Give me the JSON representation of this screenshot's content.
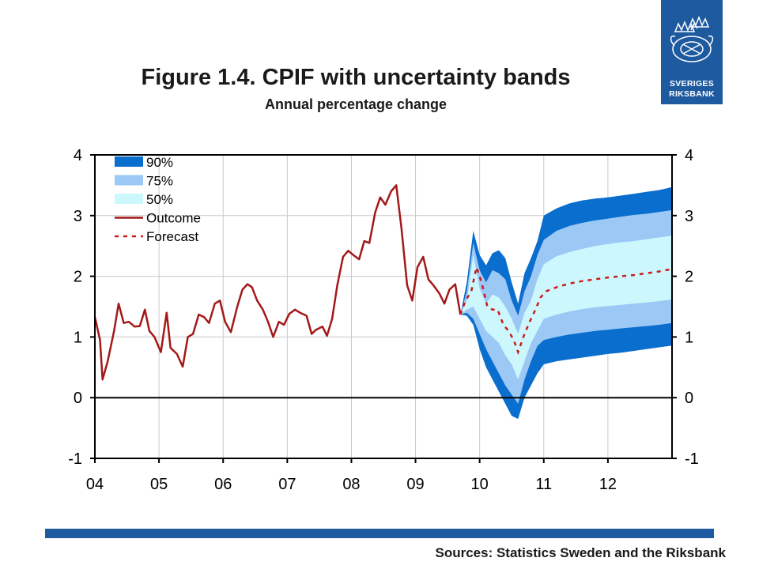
{
  "header": {
    "title": "Figure 1.4. CPIF with uncertainty bands",
    "subtitle": "Annual percentage change"
  },
  "logo": {
    "line1": "SVERIGES",
    "line2": "RIKSBANK"
  },
  "footer": {
    "source": "Sources: Statistics Sweden and the Riksbank"
  },
  "colors": {
    "band90": "#0a6ecf",
    "band75": "#9cc8f5",
    "band50": "#ccf7fd",
    "outcome": "#a31919",
    "forecast": "#cc1a1a",
    "brand": "#1d5aa0"
  },
  "chart_data": {
    "type": "area",
    "title": "Figure 1.4. CPIF with uncertainty bands",
    "subtitle": "Annual percentage change",
    "xlabel": "",
    "ylabel": "",
    "xlim": [
      2004.0,
      2013.0
    ],
    "ylim": [
      -1,
      4
    ],
    "x_ticks": [
      "04",
      "05",
      "06",
      "07",
      "08",
      "09",
      "10",
      "11",
      "12"
    ],
    "x_tick_values": [
      2004,
      2005,
      2006,
      2007,
      2008,
      2009,
      2010,
      2011,
      2012
    ],
    "y_ticks": [
      "-1",
      "0",
      "1",
      "2",
      "3",
      "4"
    ],
    "y_tick_values": [
      -1,
      0,
      1,
      2,
      3,
      4
    ],
    "grid": true,
    "legend_position": "top-left",
    "legend": [
      {
        "label": "90%",
        "kind": "band",
        "key": "band90"
      },
      {
        "label": "75%",
        "kind": "band",
        "key": "band75"
      },
      {
        "label": "50%",
        "kind": "band",
        "key": "band50"
      },
      {
        "label": "Outcome",
        "kind": "line",
        "key": "outcome"
      },
      {
        "label": "Forecast",
        "kind": "dashed",
        "key": "forecast"
      }
    ],
    "outcome": [
      [
        2004.0,
        1.33
      ],
      [
        2004.08,
        0.95
      ],
      [
        2004.12,
        0.3
      ],
      [
        2004.2,
        0.6
      ],
      [
        2004.3,
        1.1
      ],
      [
        2004.37,
        1.55
      ],
      [
        2004.45,
        1.23
      ],
      [
        2004.53,
        1.25
      ],
      [
        2004.62,
        1.17
      ],
      [
        2004.7,
        1.18
      ],
      [
        2004.78,
        1.45
      ],
      [
        2004.85,
        1.1
      ],
      [
        2004.93,
        1.0
      ],
      [
        2005.03,
        0.75
      ],
      [
        2005.12,
        1.4
      ],
      [
        2005.18,
        0.82
      ],
      [
        2005.28,
        0.72
      ],
      [
        2005.37,
        0.51
      ],
      [
        2005.45,
        1.0
      ],
      [
        2005.53,
        1.05
      ],
      [
        2005.62,
        1.37
      ],
      [
        2005.7,
        1.33
      ],
      [
        2005.78,
        1.23
      ],
      [
        2005.87,
        1.55
      ],
      [
        2005.95,
        1.6
      ],
      [
        2006.03,
        1.25
      ],
      [
        2006.12,
        1.08
      ],
      [
        2006.22,
        1.5
      ],
      [
        2006.3,
        1.78
      ],
      [
        2006.38,
        1.87
      ],
      [
        2006.45,
        1.82
      ],
      [
        2006.53,
        1.6
      ],
      [
        2006.62,
        1.45
      ],
      [
        2006.7,
        1.25
      ],
      [
        2006.78,
        1.0
      ],
      [
        2006.87,
        1.25
      ],
      [
        2006.95,
        1.2
      ],
      [
        2007.03,
        1.38
      ],
      [
        2007.12,
        1.45
      ],
      [
        2007.2,
        1.4
      ],
      [
        2007.3,
        1.35
      ],
      [
        2007.38,
        1.05
      ],
      [
        2007.45,
        1.12
      ],
      [
        2007.55,
        1.17
      ],
      [
        2007.62,
        1.02
      ],
      [
        2007.7,
        1.3
      ],
      [
        2007.78,
        1.85
      ],
      [
        2007.87,
        2.32
      ],
      [
        2007.95,
        2.42
      ],
      [
        2008.03,
        2.35
      ],
      [
        2008.12,
        2.28
      ],
      [
        2008.2,
        2.58
      ],
      [
        2008.28,
        2.55
      ],
      [
        2008.37,
        3.05
      ],
      [
        2008.45,
        3.3
      ],
      [
        2008.53,
        3.18
      ],
      [
        2008.62,
        3.4
      ],
      [
        2008.7,
        3.5
      ],
      [
        2008.78,
        2.8
      ],
      [
        2008.87,
        1.85
      ],
      [
        2008.95,
        1.6
      ],
      [
        2009.03,
        2.15
      ],
      [
        2009.12,
        2.32
      ],
      [
        2009.2,
        1.95
      ],
      [
        2009.28,
        1.85
      ],
      [
        2009.37,
        1.72
      ],
      [
        2009.45,
        1.55
      ],
      [
        2009.53,
        1.78
      ],
      [
        2009.62,
        1.87
      ],
      [
        2009.7,
        1.37
      ]
    ],
    "forecast": [
      [
        2009.7,
        1.37
      ],
      [
        2009.78,
        1.6
      ],
      [
        2009.87,
        1.75
      ],
      [
        2009.95,
        2.15
      ],
      [
        2010.03,
        1.9
      ],
      [
        2010.12,
        1.5
      ],
      [
        2010.2,
        1.45
      ],
      [
        2010.28,
        1.45
      ],
      [
        2010.37,
        1.2
      ],
      [
        2010.45,
        1.1
      ],
      [
        2010.53,
        0.95
      ],
      [
        2010.6,
        0.75
      ],
      [
        2010.7,
        1.05
      ],
      [
        2010.78,
        1.25
      ],
      [
        2010.87,
        1.45
      ],
      [
        2010.95,
        1.65
      ],
      [
        2011.03,
        1.75
      ],
      [
        2011.2,
        1.82
      ],
      [
        2011.4,
        1.88
      ],
      [
        2011.6,
        1.92
      ],
      [
        2011.8,
        1.95
      ],
      [
        2012.0,
        1.98
      ],
      [
        2012.2,
        2.0
      ],
      [
        2012.4,
        2.02
      ],
      [
        2012.6,
        2.05
      ],
      [
        2012.8,
        2.08
      ],
      [
        2013.0,
        2.12
      ]
    ],
    "bands": {
      "x": [
        2009.7,
        2009.8,
        2009.9,
        2010.0,
        2010.1,
        2010.2,
        2010.3,
        2010.4,
        2010.5,
        2010.6,
        2010.7,
        2010.8,
        2010.9,
        2011.0,
        2011.2,
        2011.4,
        2011.6,
        2011.8,
        2012.0,
        2012.2,
        2012.4,
        2012.6,
        2012.8,
        2013.0
      ],
      "band90_upper": [
        1.37,
        1.9,
        2.75,
        2.35,
        2.18,
        2.38,
        2.43,
        2.3,
        1.9,
        1.55,
        2.05,
        2.3,
        2.58,
        3.0,
        3.12,
        3.2,
        3.25,
        3.28,
        3.3,
        3.33,
        3.36,
        3.39,
        3.42,
        3.47
      ],
      "band75_upper": [
        1.37,
        1.75,
        2.55,
        2.1,
        1.9,
        2.1,
        2.05,
        1.95,
        1.6,
        1.35,
        1.75,
        2.0,
        2.35,
        2.6,
        2.75,
        2.83,
        2.88,
        2.92,
        2.95,
        2.98,
        3.01,
        3.03,
        3.06,
        3.09
      ],
      "band50_upper": [
        1.37,
        1.6,
        2.35,
        1.8,
        1.55,
        1.7,
        1.65,
        1.5,
        1.3,
        1.05,
        1.4,
        1.6,
        1.95,
        2.2,
        2.33,
        2.4,
        2.45,
        2.5,
        2.53,
        2.56,
        2.58,
        2.61,
        2.64,
        2.67
      ],
      "band50_lower": [
        1.37,
        1.45,
        1.5,
        1.3,
        1.1,
        1.0,
        0.9,
        0.7,
        0.55,
        0.3,
        0.6,
        0.9,
        1.1,
        1.3,
        1.37,
        1.42,
        1.46,
        1.49,
        1.51,
        1.53,
        1.55,
        1.57,
        1.59,
        1.62
      ],
      "band75_lower": [
        1.37,
        1.4,
        1.3,
        1.05,
        0.8,
        0.6,
        0.4,
        0.2,
        0.05,
        -0.1,
        0.3,
        0.6,
        0.85,
        0.95,
        1.0,
        1.04,
        1.07,
        1.1,
        1.12,
        1.14,
        1.16,
        1.18,
        1.2,
        1.23
      ],
      "band90_lower": [
        1.37,
        1.35,
        1.2,
        0.8,
        0.5,
        0.3,
        0.1,
        -0.1,
        -0.3,
        -0.35,
        0.0,
        0.2,
        0.4,
        0.55,
        0.6,
        0.63,
        0.66,
        0.69,
        0.72,
        0.74,
        0.77,
        0.8,
        0.83,
        0.86
      ]
    }
  }
}
